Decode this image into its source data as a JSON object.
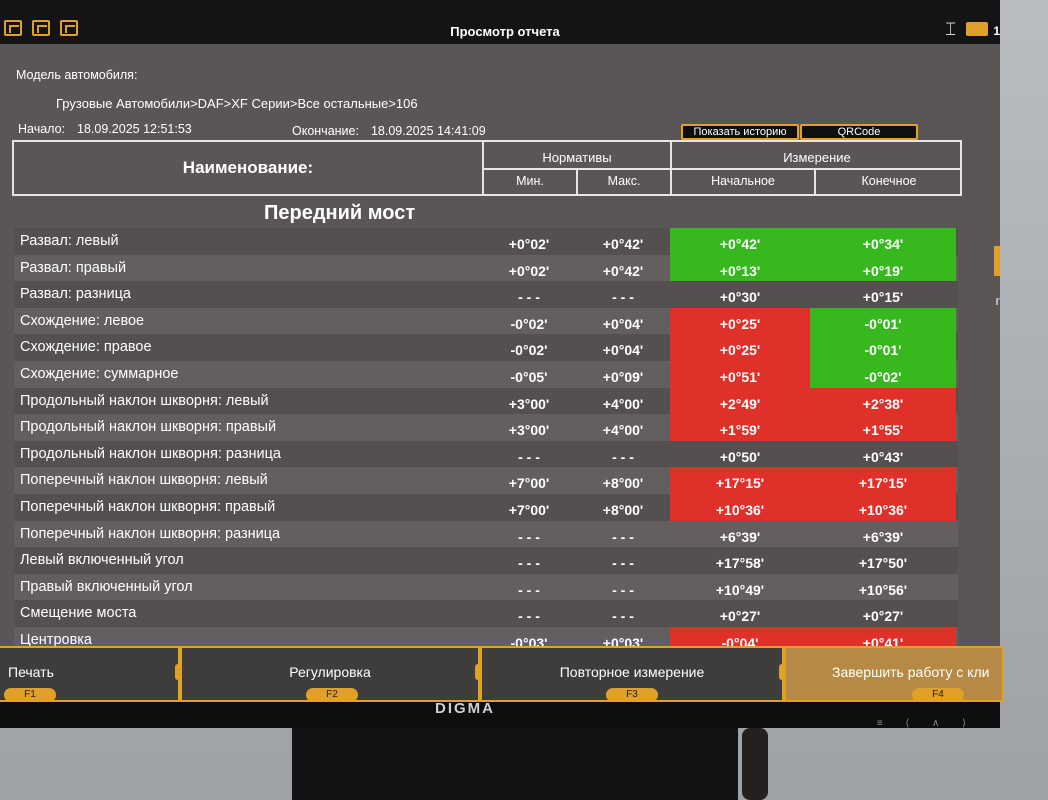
{
  "window": {
    "title": "Просмотр отчета",
    "corner_number": "1"
  },
  "meta": {
    "model_label": "Модель автомобиля:",
    "model_path": "Грузовые Автомобили>DAF>XF Серии>Все остальные>106",
    "start_label": "Начало:",
    "start_value": "18.09.2025 12:51:53",
    "end_label": "Окончание:",
    "end_value": "18.09.2025 14:41:09"
  },
  "buttons": {
    "history": "Показать историю",
    "qrcode": "QRCode"
  },
  "header": {
    "name": "Наименование:",
    "norms": "Нормативы",
    "measure": "Измерение",
    "min": "Мин.",
    "max": "Макс.",
    "initial": "Начальное",
    "final": "Конечное"
  },
  "section": "Передний мост",
  "rows": [
    {
      "name": "Развал: левый",
      "min": "+0°02'",
      "max": "+0°42'",
      "init": "+0°42'",
      "end": "+0°34'",
      "init_status": "ok",
      "end_status": "ok"
    },
    {
      "name": "Развал: правый",
      "min": "+0°02'",
      "max": "+0°42'",
      "init": "+0°13'",
      "end": "+0°19'",
      "init_status": "ok",
      "end_status": "ok"
    },
    {
      "name": "Развал: разница",
      "min": "- - -",
      "max": "- - -",
      "init": "+0°30'",
      "end": "+0°15'",
      "init_status": "none",
      "end_status": "none"
    },
    {
      "name": "Схождение: левое",
      "min": "-0°02'",
      "max": "+0°04'",
      "init": "+0°25'",
      "end": "-0°01'",
      "init_status": "bad",
      "end_status": "ok"
    },
    {
      "name": "Схождение: правое",
      "min": "-0°02'",
      "max": "+0°04'",
      "init": "+0°25'",
      "end": "-0°01'",
      "init_status": "bad",
      "end_status": "ok"
    },
    {
      "name": "Схождение: суммарное",
      "min": "-0°05'",
      "max": "+0°09'",
      "init": "+0°51'",
      "end": "-0°02'",
      "init_status": "bad",
      "end_status": "ok"
    },
    {
      "name": "Продольный наклон шкворня: левый",
      "min": "+3°00'",
      "max": "+4°00'",
      "init": "+2°49'",
      "end": "+2°38'",
      "init_status": "bad",
      "end_status": "bad"
    },
    {
      "name": "Продольный наклон шкворня: правый",
      "min": "+3°00'",
      "max": "+4°00'",
      "init": "+1°59'",
      "end": "+1°55'",
      "init_status": "bad",
      "end_status": "bad"
    },
    {
      "name": "Продольный наклон шкворня: разница",
      "min": "- - -",
      "max": "- - -",
      "init": "+0°50'",
      "end": "+0°43'",
      "init_status": "none",
      "end_status": "none"
    },
    {
      "name": "Поперечный наклон шкворня: левый",
      "min": "+7°00'",
      "max": "+8°00'",
      "init": "+17°15'",
      "end": "+17°15'",
      "init_status": "bad",
      "end_status": "bad"
    },
    {
      "name": "Поперечный наклон шкворня: правый",
      "min": "+7°00'",
      "max": "+8°00'",
      "init": "+10°36'",
      "end": "+10°36'",
      "init_status": "bad",
      "end_status": "bad"
    },
    {
      "name": "Поперечный наклон шкворня: разница",
      "min": "- - -",
      "max": "- - -",
      "init": "+6°39'",
      "end": "+6°39'",
      "init_status": "none",
      "end_status": "none"
    },
    {
      "name": "Левый включенный угол",
      "min": "- - -",
      "max": "- - -",
      "init": "+17°58'",
      "end": "+17°50'",
      "init_status": "none",
      "end_status": "none"
    },
    {
      "name": "Правый включенный угол",
      "min": "- - -",
      "max": "- - -",
      "init": "+10°49'",
      "end": "+10°56'",
      "init_status": "none",
      "end_status": "none"
    },
    {
      "name": "Смещение моста",
      "min": "- - -",
      "max": "- - -",
      "init": "+0°27'",
      "end": "+0°27'",
      "init_status": "none",
      "end_status": "none"
    },
    {
      "name": "Центровка",
      "min": "-0°03'",
      "max": "+0°03'",
      "init": "-0°04'",
      "end": "+0°41'",
      "init_status": "bad",
      "end_status": "bad"
    }
  ],
  "fkeys": [
    {
      "label": "Печать",
      "key": "F1"
    },
    {
      "label": "Регулировка",
      "key": "F2"
    },
    {
      "label": "Повторное измерение",
      "key": "F3"
    },
    {
      "label": "Завершить работу с кли",
      "key": "F4"
    }
  ],
  "monitor": {
    "brand": "DIGMA",
    "controls": "≡ ⟨ ∧ ⟩"
  },
  "colors": {
    "accent": "#e0a02a",
    "ok": "#37b81f",
    "bad": "#e0302a",
    "screen_bg": "#5a5656"
  }
}
